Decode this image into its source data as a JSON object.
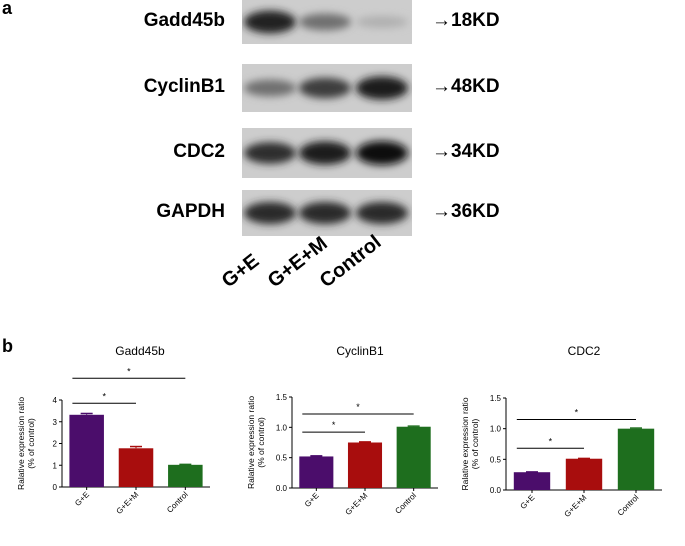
{
  "panel_a": {
    "label": "a",
    "blots": [
      {
        "protein": "Gadd45b",
        "size": "→18KD",
        "intensity": [
          0.92,
          0.55,
          0.25
        ]
      },
      {
        "protein": "CyclinB1",
        "size": "→48KD",
        "intensity": [
          0.55,
          0.78,
          0.95
        ]
      },
      {
        "protein": "CDC2",
        "size": "→34KD",
        "intensity": [
          0.85,
          0.95,
          1.0
        ]
      },
      {
        "protein": "GAPDH",
        "size": "→36KD",
        "intensity": [
          0.88,
          0.88,
          0.88
        ]
      }
    ],
    "lanes": [
      "G+E",
      "G+E+M",
      "Control"
    ]
  },
  "panel_b": {
    "label": "b"
  },
  "chart_data": [
    {
      "type": "bar",
      "title": "Gadd45b",
      "ylabel_line1": "Ralative expression ratio",
      "ylabel_line2": "(% of control)",
      "categories": [
        "G+E",
        "G+E+M",
        "Control"
      ],
      "values": [
        3.32,
        1.78,
        1.02
      ],
      "errors": [
        0.06,
        0.08,
        0.02
      ],
      "colors": [
        "#4b0d6b",
        "#a80d0d",
        "#1e6e1e"
      ],
      "ylim": [
        0,
        4
      ],
      "yticks": [
        "0",
        "1",
        "2",
        "3",
        "4"
      ],
      "yticks_values": [
        0,
        1,
        2,
        3,
        4
      ],
      "significance": [
        {
          "from": 0,
          "to": 1,
          "y": 3.85,
          "label": "*"
        },
        {
          "from": 0,
          "to": 2,
          "y": 5.0,
          "label": "*"
        }
      ]
    },
    {
      "type": "bar",
      "title": "CyclinB1",
      "ylabel_line1": "Ralative expression ratio",
      "ylabel_line2": "(% of control)",
      "categories": [
        "G+E",
        "G+E+M",
        "Control"
      ],
      "values": [
        0.52,
        0.75,
        1.01
      ],
      "errors": [
        0.01,
        0.01,
        0.01
      ],
      "colors": [
        "#4b0d6b",
        "#a80d0d",
        "#1e6e1e"
      ],
      "ylim": [
        0,
        1.5
      ],
      "yticks": [
        "0.0",
        "0.5",
        "1.0",
        "1.5"
      ],
      "yticks_values": [
        0,
        0.5,
        1.0,
        1.5
      ],
      "significance": [
        {
          "from": 0,
          "to": 1,
          "y": 0.92,
          "label": "*"
        },
        {
          "from": 0,
          "to": 2,
          "y": 1.22,
          "label": "*"
        }
      ]
    },
    {
      "type": "bar",
      "title": "CDC2",
      "ylabel_line1": "Ralative expression ratio",
      "ylabel_line2": "(% of control)",
      "categories": [
        "G+E",
        "G+E+M",
        "Control"
      ],
      "values": [
        0.29,
        0.51,
        1.0
      ],
      "errors": [
        0.005,
        0.005,
        0.01
      ],
      "colors": [
        "#4b0d6b",
        "#a80d0d",
        "#1e6e1e"
      ],
      "ylim": [
        0,
        1.5
      ],
      "yticks": [
        "0.0",
        "0.5",
        "1.0",
        "1.5"
      ],
      "yticks_values": [
        0,
        0.5,
        1.0,
        1.5
      ],
      "significance": [
        {
          "from": 0,
          "to": 1,
          "y": 0.68,
          "label": "*"
        },
        {
          "from": 0,
          "to": 2,
          "y": 1.15,
          "label": "*"
        }
      ]
    }
  ]
}
